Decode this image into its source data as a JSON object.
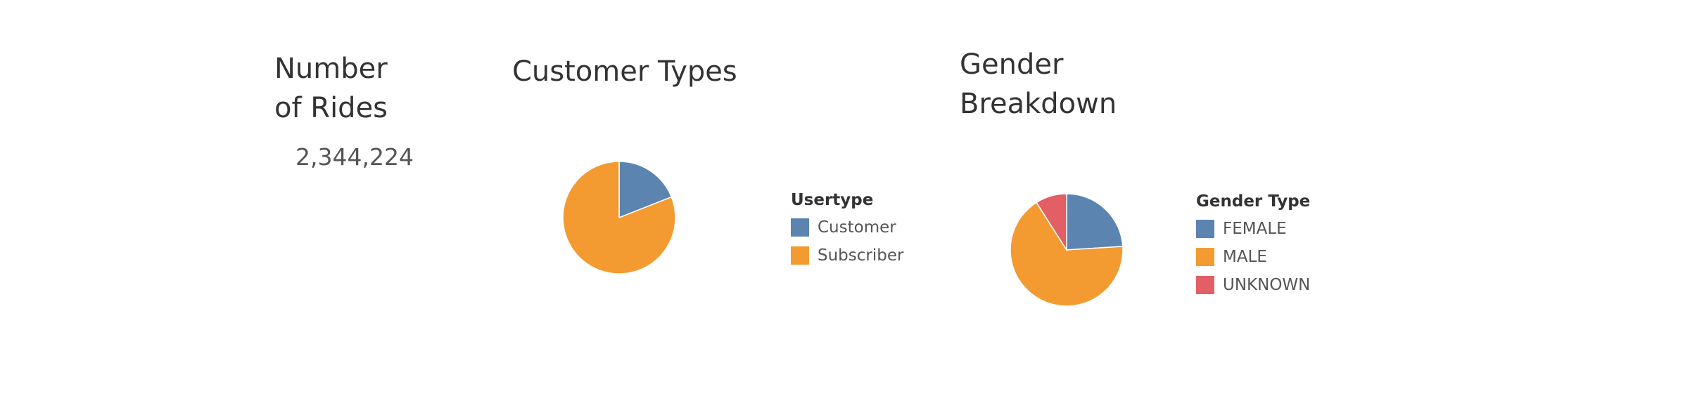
{
  "kpi": {
    "title_line1": "Number",
    "title_line2": "of Rides",
    "value": "2,344,224"
  },
  "chart_data": [
    {
      "type": "pie",
      "title": "Customer Types",
      "legend_title": "Usertype",
      "legend_position": "right",
      "categories": [
        "Customer",
        "Subscriber"
      ],
      "values": [
        19,
        81
      ],
      "colors": [
        "#5b84b1",
        "#f39b31"
      ]
    },
    {
      "type": "pie",
      "title_line1": "Gender",
      "title_line2": "Breakdown",
      "legend_title": "Gender Type",
      "legend_position": "right",
      "categories": [
        "FEMALE",
        "MALE",
        "UNKNOWN"
      ],
      "values": [
        24,
        67,
        9
      ],
      "colors": [
        "#5b84b1",
        "#f39b31",
        "#e15f65"
      ]
    }
  ]
}
